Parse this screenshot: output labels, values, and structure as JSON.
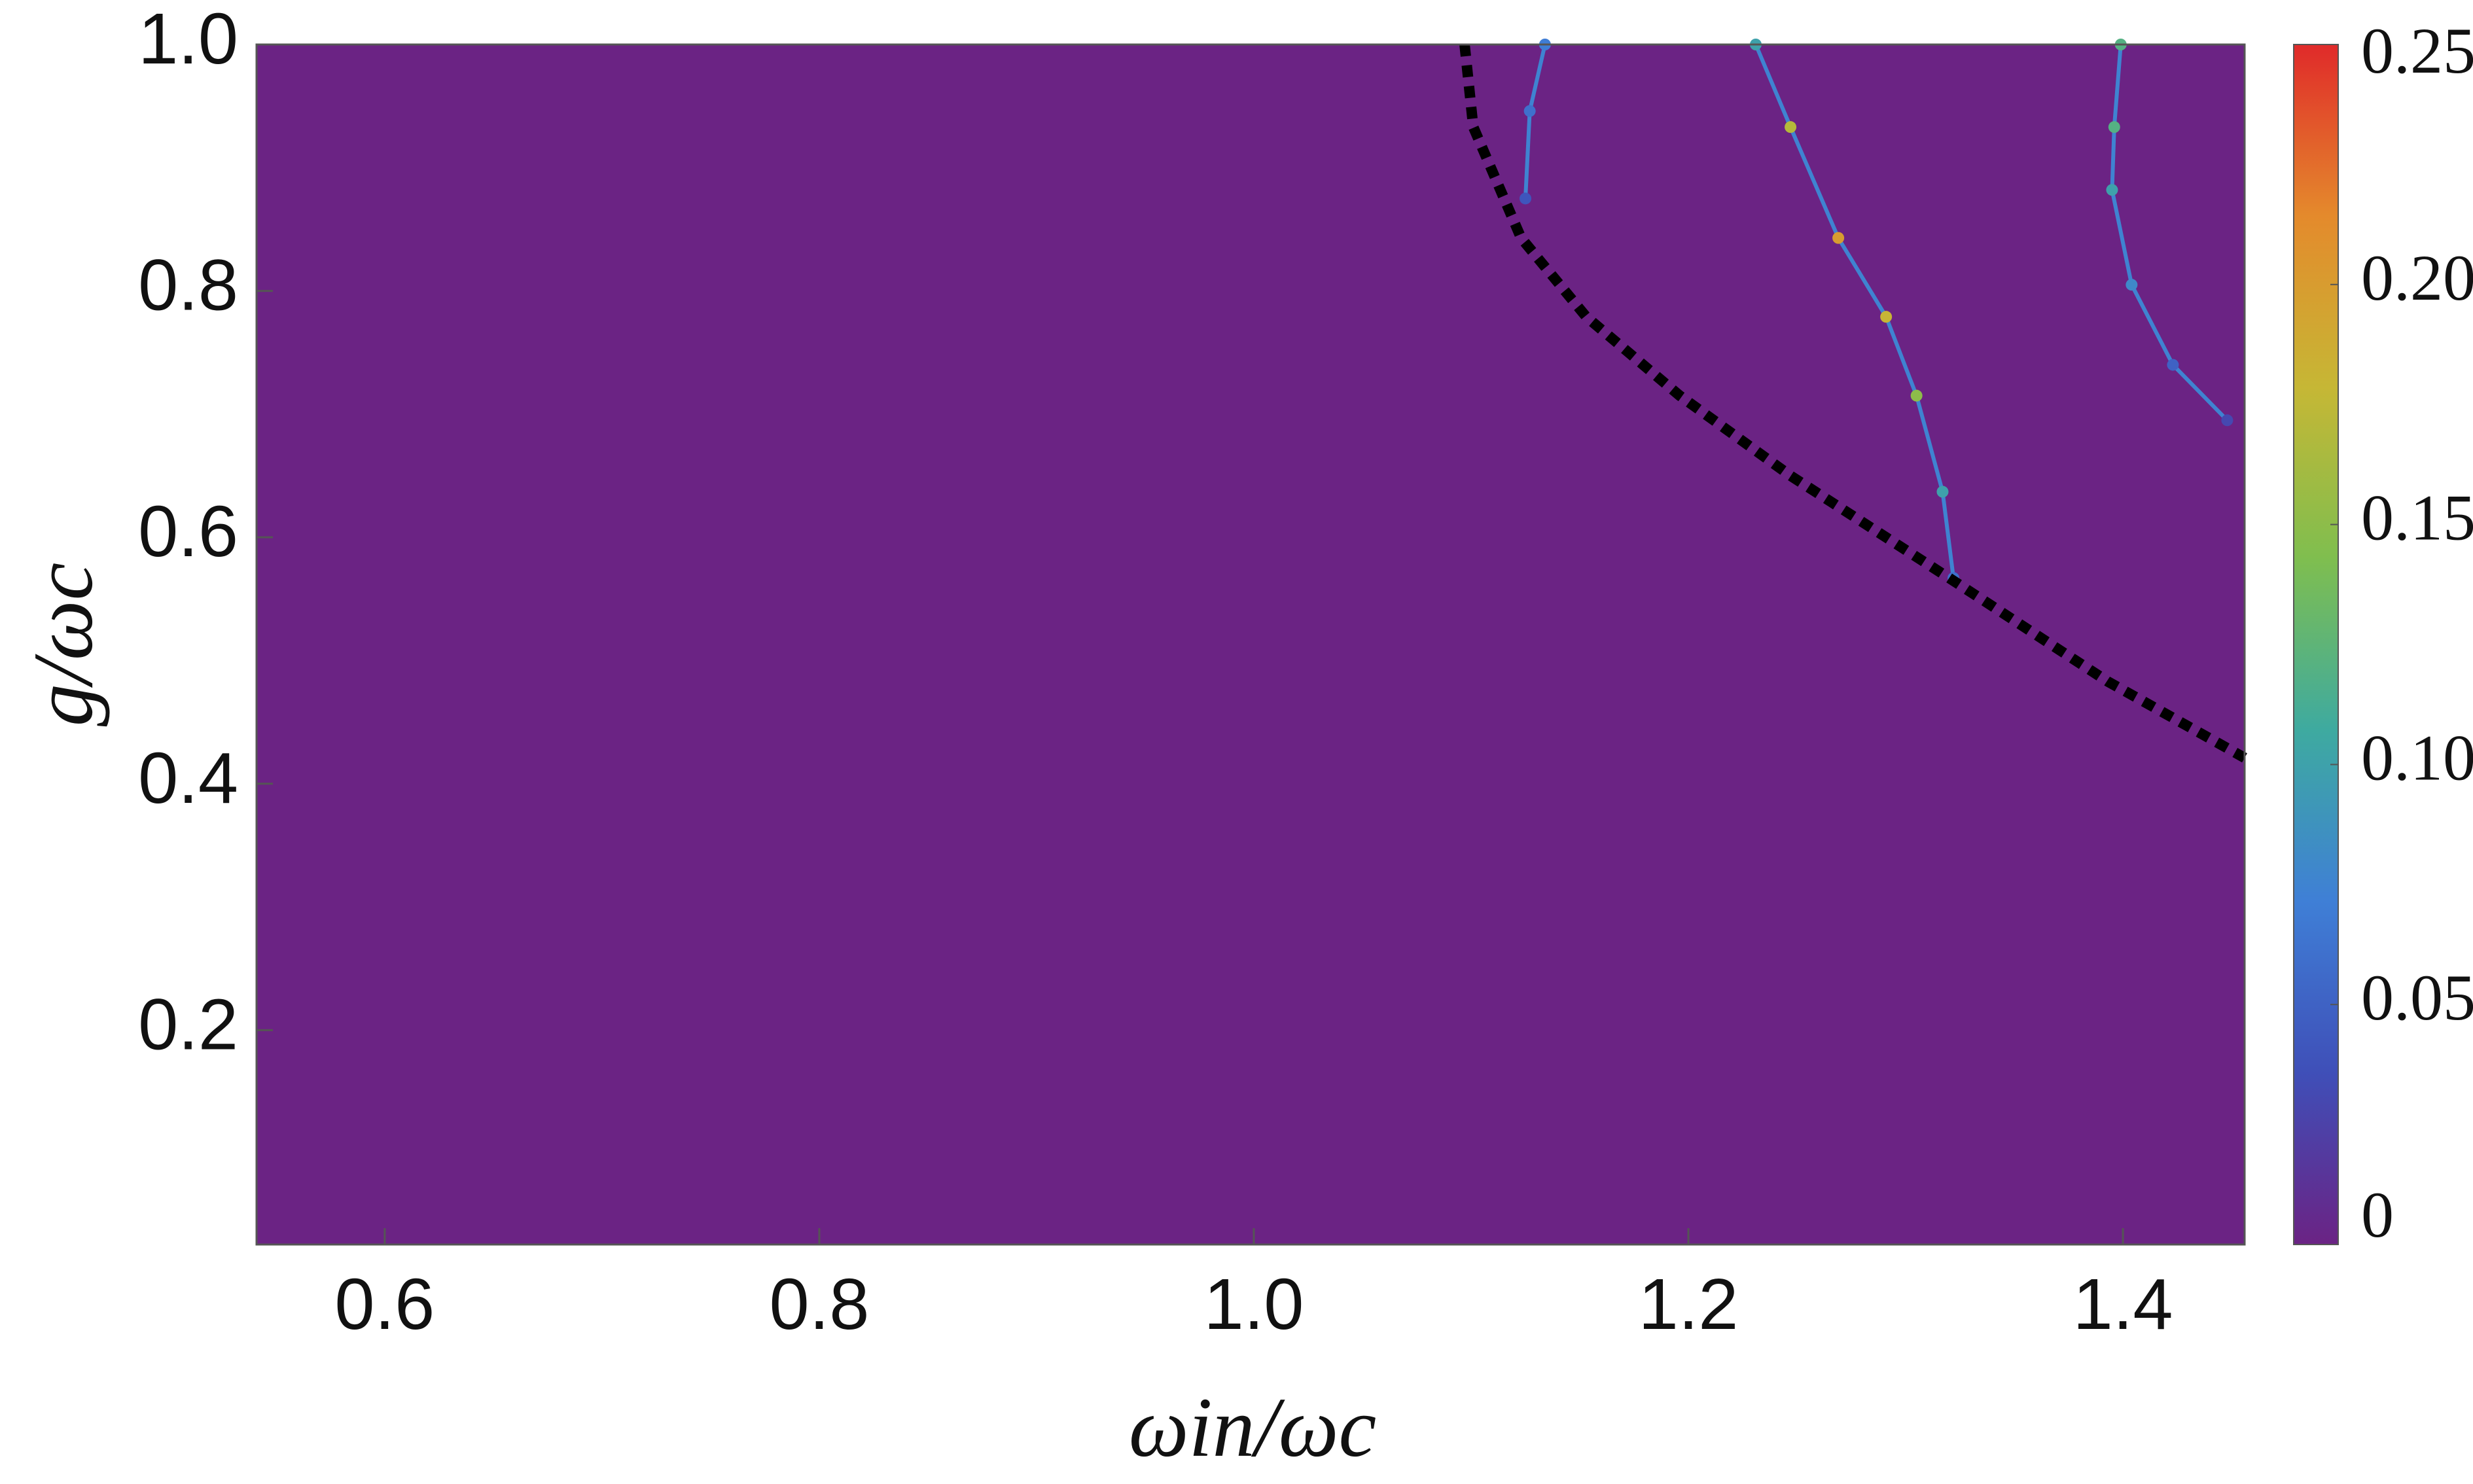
{
  "chart_data": {
    "type": "density",
    "x_label": "ωin/ωc",
    "y_label": "g/ωc",
    "xlim": [
      0.541,
      1.456
    ],
    "ylim": [
      0.026,
      1.0
    ],
    "xticks": [
      0.6,
      0.8,
      {
        "value": 1.0,
        "label": "1.0"
      },
      1.2,
      1.4
    ],
    "yticks": [
      0.2,
      0.4,
      0.6,
      0.8,
      {
        "value": 1.0,
        "label": "1.0"
      }
    ],
    "clim": [
      0,
      0.25
    ],
    "cticks": [
      0,
      {
        "value": 0.05,
        "label": "0.05"
      },
      {
        "value": 0.1,
        "label": "0.10"
      },
      0.15,
      {
        "value": 0.2,
        "label": "0.20"
      },
      0.25
    ],
    "colormap": [
      "#6b2384",
      "#3f4fb8",
      "#3f7fd6",
      "#3eaaa0",
      "#7fbe4f",
      "#c6b735",
      "#e48a2c",
      "#e02a2a"
    ],
    "ridges": [
      {
        "x": [
          1.134,
          1.127,
          1.125
        ],
        "y": [
          1.0,
          0.946,
          0.875
        ],
        "values": [
          0.07,
          0.06,
          0.04
        ]
      },
      {
        "x": [
          1.231,
          1.247,
          1.269,
          1.291,
          1.305,
          1.317,
          1.322
        ],
        "y": [
          1.0,
          0.933,
          0.843,
          0.779,
          0.715,
          0.637,
          0.567
        ],
        "values": [
          0.1,
          0.17,
          0.2,
          0.18,
          0.15,
          0.1,
          0.06
        ]
      },
      {
        "x": [
          1.399,
          1.396,
          1.395,
          1.404,
          1.423,
          1.448
        ],
        "y": [
          1.0,
          0.933,
          0.882,
          0.805,
          0.74,
          0.695
        ],
        "values": [
          0.12,
          0.12,
          0.1,
          0.08,
          0.05,
          0.03
        ]
      }
    ],
    "boundary": {
      "color": "#000000",
      "x": [
        1.097,
        1.101,
        1.123,
        1.153,
        1.196,
        1.247,
        1.32,
        1.393,
        1.456
      ],
      "y": [
        1.0,
        0.933,
        0.843,
        0.779,
        0.715,
        0.65,
        0.567,
        0.483,
        0.421
      ]
    }
  }
}
